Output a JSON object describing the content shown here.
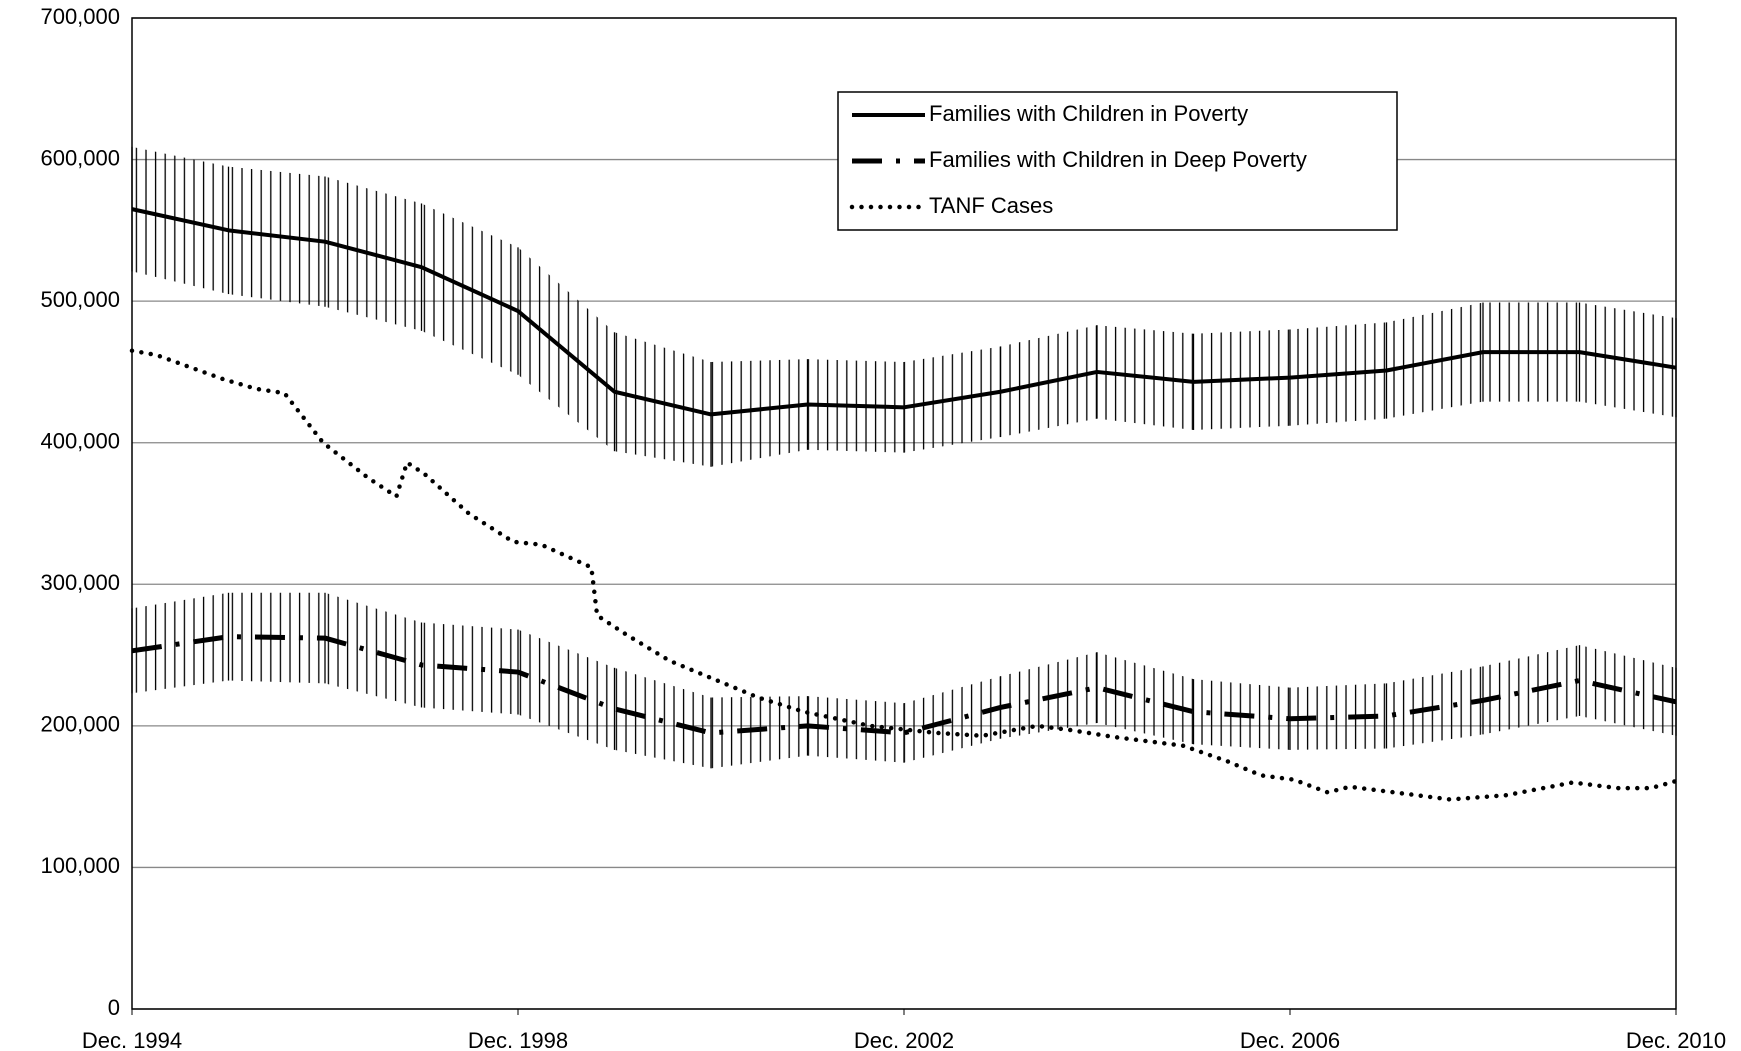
{
  "chart_data": {
    "type": "line",
    "xlim": [
      1994.92,
      2010.92
    ],
    "xticks": [
      {
        "value": 1994.92,
        "label": "Dec. 1994"
      },
      {
        "value": 1998.92,
        "label": "Dec. 1998"
      },
      {
        "value": 2002.92,
        "label": "Dec. 2002"
      },
      {
        "value": 2006.92,
        "label": "Dec. 2006"
      },
      {
        "value": 2010.92,
        "label": "Dec. 2010"
      }
    ],
    "ylim": [
      0,
      700000
    ],
    "yticks": [
      {
        "value": 0,
        "label": "0"
      },
      {
        "value": 100000,
        "label": "100,000"
      },
      {
        "value": 200000,
        "label": "200,000"
      },
      {
        "value": 300000,
        "label": "300,000"
      },
      {
        "value": 400000,
        "label": "400,000"
      },
      {
        "value": 500000,
        "label": "500,000"
      },
      {
        "value": 600000,
        "label": "600,000"
      },
      {
        "value": 700000,
        "label": "700,000"
      }
    ],
    "grid": true,
    "legend": "top-center",
    "series": [
      {
        "name": "Families with Children in Poverty",
        "color": "#000000",
        "style": "solid",
        "x": [
          1994.92,
          1995.92,
          1996.92,
          1997.92,
          1998.92,
          1999.92,
          2000.92,
          2001.92,
          2002.92,
          2003.92,
          2004.92,
          2005.92,
          2006.92,
          2007.92,
          2008.92,
          2009.92,
          2010.92
        ],
        "values": [
          565000,
          550000,
          542000,
          524000,
          493000,
          436000,
          420000,
          427000,
          425000,
          436000,
          450000,
          443000,
          446000,
          451000,
          464000,
          464000,
          453000
        ],
        "errors": [
          44000,
          45000,
          46000,
          45000,
          45000,
          42000,
          37000,
          32000,
          32000,
          32000,
          33000,
          34000,
          34000,
          34000,
          35000,
          35000,
          35000
        ]
      },
      {
        "name": "Families with Children in Deep Poverty",
        "color": "#000000",
        "style": "dashdot",
        "x": [
          1994.92,
          1995.92,
          1996.92,
          1997.92,
          1998.92,
          1999.92,
          2000.92,
          2001.92,
          2002.92,
          2003.92,
          2004.92,
          2005.92,
          2006.92,
          2007.92,
          2008.92,
          2009.92,
          2010.92
        ],
        "values": [
          253000,
          263000,
          262000,
          243000,
          238000,
          212000,
          195000,
          200000,
          195000,
          213000,
          227000,
          210000,
          205000,
          207000,
          218000,
          232000,
          217000
        ],
        "errors": [
          30000,
          31000,
          32000,
          30000,
          30000,
          29000,
          25000,
          21000,
          21000,
          22000,
          25000,
          23000,
          22000,
          23000,
          24000,
          25000,
          24000
        ]
      },
      {
        "name": "TANF Cases",
        "color": "#000000",
        "style": "dotted",
        "x": [
          1994.92,
          1995.17,
          1995.86,
          1996.21,
          1996.5,
          1996.9,
          1997.37,
          1997.66,
          1997.77,
          1997.95,
          1998.41,
          1998.87,
          1999.16,
          1999.68,
          1999.74,
          2000.03,
          2000.49,
          2000.95,
          2001.41,
          2001.88,
          2002.57,
          2003.26,
          2003.73,
          2004.3,
          2004.65,
          2005.11,
          2005.81,
          2006.27,
          2006.62,
          2006.96,
          2007.31,
          2007.54,
          2008.0,
          2008.58,
          2009.16,
          2009.85,
          2010.32,
          2010.66,
          2010.92
        ],
        "values": [
          465000,
          462000,
          445000,
          438000,
          435000,
          400000,
          375000,
          362000,
          386000,
          378000,
          350000,
          330000,
          328000,
          312000,
          278000,
          265000,
          246000,
          233000,
          220000,
          210000,
          200000,
          195000,
          193000,
          200000,
          197000,
          192000,
          186000,
          175000,
          165000,
          162000,
          153000,
          157000,
          153000,
          148000,
          151000,
          160000,
          156000,
          156000,
          161000
        ]
      }
    ]
  }
}
